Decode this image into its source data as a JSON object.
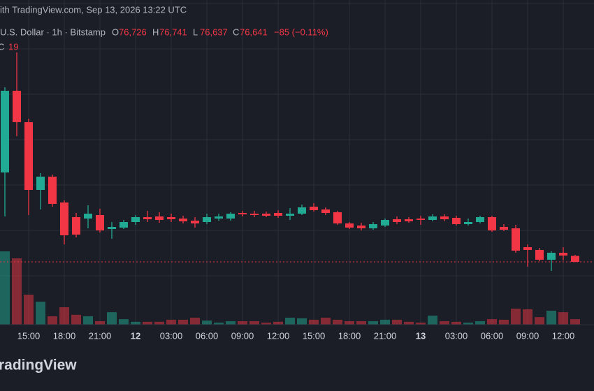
{
  "chart_data": {
    "type": "candlestick",
    "source": "ith TradingView.com, Sep 13, 2026 13:22 UTC",
    "symbol": "U.S. Dollar · 1h · Bitstamp",
    "ohlc_legend": [
      {
        "key": "O",
        "value": "76,726"
      },
      {
        "key": "H",
        "value": "76,741"
      },
      {
        "key": "L",
        "value": "76,637"
      },
      {
        "key": "C",
        "value": "76,641"
      }
    ],
    "change": "−85 (−0.11%)",
    "volume_legend": {
      "key": "C",
      "value": "19"
    },
    "brand": "radingView",
    "categories": [
      null,
      null,
      "15:00",
      null,
      null,
      "18:00",
      null,
      null,
      "21:00",
      null,
      null,
      "12",
      null,
      null,
      "03:00",
      null,
      null,
      "06:00",
      null,
      null,
      "09:00",
      null,
      null,
      "12:00",
      null,
      null,
      "15:00",
      null,
      null,
      "18:00",
      null,
      null,
      "21:00",
      null,
      null,
      "13",
      null,
      null,
      "03:00",
      null,
      null,
      "06:00",
      null,
      null,
      "09:00",
      null,
      null,
      "12:00",
      null
    ],
    "open": [
      77921,
      79091,
      78641,
      77671,
      77861,
      77491,
      77281,
      77261,
      77311,
      77111,
      77131,
      77211,
      77281,
      77291,
      77281,
      77261,
      77231,
      77211,
      77261,
      77261,
      77341,
      77331,
      77331,
      77341,
      77301,
      77331,
      77431,
      77391,
      77351,
      77191,
      77161,
      77121,
      77161,
      77251,
      77251,
      77261,
      77241,
      77291,
      77271,
      77181,
      77211,
      77281,
      77141,
      77121,
      76851,
      76811,
      76671,
      76771,
      76726
    ],
    "high": [
      79141,
      79641,
      78691,
      77911,
      77891,
      77521,
      77341,
      77451,
      77401,
      77211,
      77241,
      77311,
      77371,
      77351,
      77331,
      77301,
      77281,
      77331,
      77331,
      77351,
      77371,
      77371,
      77361,
      77381,
      77411,
      77461,
      77481,
      77421,
      77371,
      77211,
      77201,
      77211,
      77261,
      77291,
      77281,
      77301,
      77321,
      77321,
      77301,
      77261,
      77301,
      77301,
      77181,
      77171,
      76891,
      76841,
      76791,
      76851,
      76741
    ],
    "low": [
      77291,
      78441,
      77311,
      77391,
      77431,
      76891,
      76991,
      77121,
      77061,
      76971,
      77111,
      77171,
      77211,
      77201,
      77211,
      77191,
      77131,
      77181,
      77231,
      77231,
      77291,
      77281,
      77281,
      77271,
      77241,
      77311,
      77361,
      77311,
      77171,
      77111,
      77091,
      77101,
      77141,
      77181,
      77201,
      77171,
      77221,
      77221,
      77161,
      77161,
      77191,
      77071,
      77081,
      76771,
      76571,
      76651,
      76511,
      76661,
      76637
    ],
    "close": [
      79091,
      78641,
      77671,
      77861,
      77471,
      77021,
      77031,
      77331,
      77091,
      77141,
      77211,
      77281,
      77251,
      77241,
      77251,
      77221,
      77191,
      77281,
      77291,
      77331,
      77321,
      77311,
      77301,
      77301,
      77331,
      77421,
      77381,
      77341,
      77191,
      77131,
      77121,
      77181,
      77241,
      77211,
      77221,
      77241,
      77291,
      77251,
      77181,
      77211,
      77281,
      77091,
      77101,
      76801,
      76811,
      76671,
      76771,
      76731,
      76641
    ],
    "volume": [
      252,
      228,
      103,
      79,
      29,
      60,
      34,
      29,
      12,
      43,
      19,
      10,
      10,
      10,
      17,
      17,
      24,
      14,
      7,
      12,
      12,
      12,
      7,
      10,
      24,
      22,
      17,
      24,
      17,
      12,
      12,
      12,
      17,
      17,
      10,
      7,
      31,
      12,
      10,
      7,
      12,
      19,
      17,
      55,
      53,
      26,
      48,
      43,
      19
    ],
    "ylim": [
      75741,
      80391
    ],
    "volume_lim": [
      0,
      600
    ],
    "up_color": "#22ab94",
    "down_color": "#f23645",
    "grid": true
  }
}
